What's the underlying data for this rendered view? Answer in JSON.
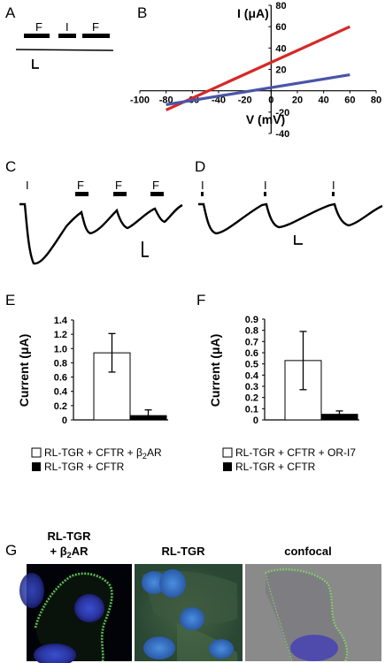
{
  "panels": {
    "A": "A",
    "B": "B",
    "C": "C",
    "D": "D",
    "E": "E",
    "F": "F",
    "G": "G"
  },
  "panelA": {
    "stimuli": [
      "F",
      "I",
      "F"
    ]
  },
  "panelB": {
    "xlabel": "V (mV)",
    "ylabel": "I (μA)",
    "xlim": [
      -100,
      80
    ],
    "ylim": [
      -40,
      80
    ],
    "xticks": [
      "-100",
      "-80",
      "-60",
      "-40",
      "-20",
      "0",
      "20",
      "40",
      "60",
      "80"
    ],
    "yticks": [
      "-40",
      "-20",
      "0",
      "20",
      "40",
      "60",
      "80"
    ],
    "series": [
      {
        "color": "#d62828",
        "x": [
          -80,
          60
        ],
        "y": [
          -18,
          60
        ]
      },
      {
        "color": "#4a55a8",
        "x": [
          -80,
          60
        ],
        "y": [
          -13,
          15
        ]
      }
    ]
  },
  "panelC": {
    "stimuli": [
      "I",
      "F",
      "F",
      "F"
    ]
  },
  "panelD": {
    "stimuli": [
      "I",
      "I",
      "I"
    ]
  },
  "chart_data": [
    {
      "type": "bar",
      "panel": "E",
      "categories": [
        "RL-TGR + CFTR + β2AR",
        "RL-TGR + CFTR"
      ],
      "values": [
        0.94,
        0.06
      ],
      "errors": [
        0.27,
        0.08
      ],
      "fills": [
        "#ffffff",
        "#000000"
      ],
      "ylabel": "Current (μA)",
      "ylim": [
        0,
        1.4
      ],
      "yticks": [
        "0",
        "0.2",
        "0.4",
        "0.6",
        "0.8",
        "1.0",
        "1.2",
        "1.4"
      ]
    },
    {
      "type": "bar",
      "panel": "F",
      "categories": [
        "RL-TGR + CFTR + OR-I7",
        "RL-TGR + CFTR"
      ],
      "values": [
        0.53,
        0.05
      ],
      "errors": [
        0.26,
        0.03
      ],
      "fills": [
        "#ffffff",
        "#000000"
      ],
      "ylabel": "Current (μA)",
      "ylim": [
        0,
        0.9
      ],
      "yticks": [
        "0",
        "0.1",
        "0.2",
        "0.3",
        "0.4",
        "0.5",
        "0.6",
        "0.7",
        "0.8",
        "0.9"
      ]
    }
  ],
  "legendE": {
    "line1a": "RL-TGR + CFTR + β",
    "line1sub": "2",
    "line1b": "AR",
    "line2": "RL-TGR + CFTR"
  },
  "legendF": {
    "line1": "RL-TGR + CFTR + OR-I7",
    "line2": "RL-TGR + CFTR"
  },
  "panelG": {
    "label1a": "RL-TGR",
    "label1b": "+ β",
    "label1sub": "2",
    "label1c": "AR",
    "label2": "RL-TGR",
    "label3": "confocal"
  }
}
